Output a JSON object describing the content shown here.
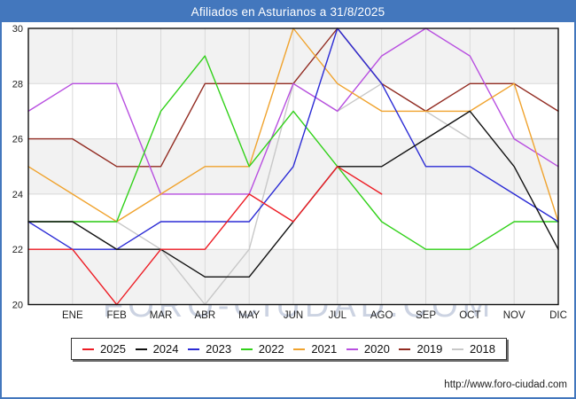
{
  "header": {
    "title": "Afiliados en Asturianos a 31/8/2025"
  },
  "watermark": {
    "text": "FORO-CIUDAD.COM"
  },
  "footer": {
    "url": "http://www.foro-ciudad.com"
  },
  "theme": {
    "titlebar_bg": "#4377bd",
    "page_border": "#4377bd",
    "plot_border": "#111111",
    "grid_color": "#d9d9d9",
    "band_color": "#f2f2f2",
    "tick_text_color": "#222222",
    "watermark_color": "#ccd3e2"
  },
  "chart_data": {
    "type": "line",
    "title": "Afiliados en Asturianos a 31/8/2025",
    "xlabel": "",
    "ylabel": "",
    "ylim": [
      20,
      30
    ],
    "yticks": [
      20,
      22,
      24,
      26,
      28,
      30
    ],
    "grid": true,
    "legend_position": "bottom",
    "categories": [
      "ENE",
      "FEB",
      "MAR",
      "ABR",
      "MAY",
      "JUN",
      "JUL",
      "AGO",
      "SEP",
      "OCT",
      "NOV",
      "DIC"
    ],
    "start_note": "each polyline begins at the plot left edge with the previous December value",
    "series": [
      {
        "name": "2025",
        "color": "#ed1c24",
        "start": 22,
        "values": [
          22,
          20,
          22,
          22,
          24,
          23,
          25,
          24
        ]
      },
      {
        "name": "2024",
        "color": "#111111",
        "start": 23,
        "values": [
          23,
          22,
          22,
          21,
          21,
          23,
          25,
          25,
          26,
          27,
          25,
          22
        ]
      },
      {
        "name": "2023",
        "color": "#2b2bd5",
        "start": 23,
        "values": [
          22,
          22,
          23,
          23,
          23,
          25,
          30,
          28,
          25,
          25,
          24,
          23
        ]
      },
      {
        "name": "2022",
        "color": "#31d119",
        "start": 23,
        "values": [
          23,
          23,
          27,
          29,
          25,
          27,
          25,
          23,
          22,
          22,
          23,
          23
        ]
      },
      {
        "name": "2021",
        "color": "#f0a32e",
        "start": 25,
        "values": [
          24,
          23,
          24,
          25,
          25,
          30,
          28,
          27,
          27,
          27,
          28,
          23
        ]
      },
      {
        "name": "2020",
        "color": "#b84fe0",
        "start": 27,
        "values": [
          28,
          28,
          24,
          24,
          24,
          28,
          27,
          29,
          30,
          29,
          26,
          25
        ]
      },
      {
        "name": "2019",
        "color": "#922b21",
        "start": 26,
        "values": [
          26,
          25,
          25,
          28,
          28,
          28,
          30,
          28,
          27,
          28,
          28,
          27
        ]
      },
      {
        "name": "2018",
        "color": "#c8c8c8",
        "start": 23,
        "values": [
          23,
          23,
          22,
          20,
          22,
          28,
          27,
          28,
          27,
          26,
          26,
          26
        ]
      }
    ]
  }
}
